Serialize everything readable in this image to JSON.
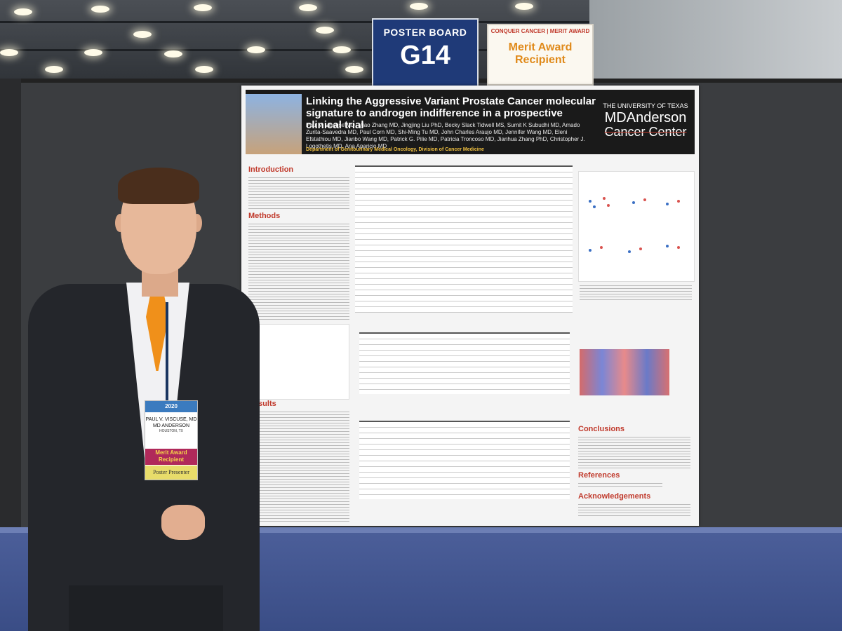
{
  "sign": {
    "line1": "POSTER BOARD",
    "line2": "G14"
  },
  "merit_sign": {
    "small": "CONQUER CANCER | MERIT AWARD",
    "line1": "Merit Award",
    "line2": "Recipient"
  },
  "poster": {
    "title": "Linking the Aggressive Variant Prostate Cancer molecular signature to androgen indifference in a prospective clinical trial",
    "authors": "Paul V. Viscuse MD, Miao Zhang MD, Jingjing Liu PhD, Becky Slack Tidwell MS, Sumit K Subudhi MD, Amado Zurita-Saavedra MD, Paul Corn MD, Shi-Ming Tu MD, John Charles Araujo MD, Jennifer Wang MD, Eleni Efstathiou MD, Jianbo Wang MD, Patrick G. Pilie MD, Patricia Troncoso MD, Jianhua Zhang PhD, Christopher J. Logothetis MD, Ana Aparicio MD",
    "department": "Department of Genitourinary Medical Oncology, Division of Cancer Medicine",
    "logo": {
      "top": "THE UNIVERSITY OF TEXAS",
      "mid": "MDAnderson",
      "bot": "Cancer Center"
    },
    "sections": {
      "introduction": "Introduction",
      "methods": "Methods",
      "results": "Results",
      "conclusions": "Conclusions",
      "references": "References",
      "acknowledgements": "Acknowledgements"
    }
  },
  "badge": {
    "year": "2020",
    "name": "PAUL V. VISCUSE, MD",
    "org": "MD ANDERSON",
    "city": "HOUSTON, TX",
    "ribbon": "Merit Award Recipient",
    "role": "Poster Presenter"
  }
}
